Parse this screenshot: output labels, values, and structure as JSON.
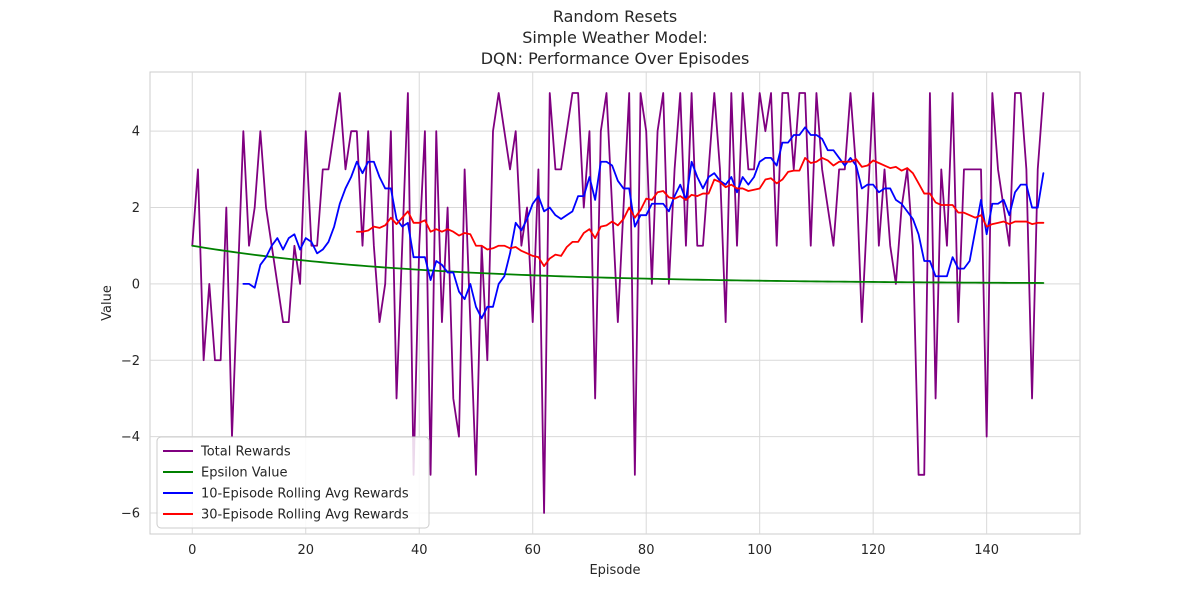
{
  "chart_data": {
    "type": "line",
    "title_lines": [
      "Random Resets",
      "Simple Weather Model:",
      "DQN: Performance Over Episodes"
    ],
    "xlabel": "Episode",
    "ylabel": "Value",
    "xlim": [
      -7.45,
      156.45
    ],
    "ylim": [
      -6.55,
      5.55
    ],
    "xticks": [
      0,
      20,
      40,
      60,
      80,
      100,
      120,
      140
    ],
    "yticks": [
      -6,
      -4,
      -2,
      0,
      2,
      4
    ],
    "ytick_labels": [
      "−6",
      "−4",
      "−2",
      "0",
      "2",
      "4"
    ],
    "grid": true,
    "legend_position": "lower-left",
    "series": [
      {
        "name": "Total Rewards",
        "color": "#800080",
        "x_start": 0,
        "values": [
          1,
          3,
          -2,
          0,
          -2,
          -2,
          2,
          -4,
          0,
          4,
          1,
          2,
          4,
          2,
          1,
          0,
          -1,
          -1,
          1,
          0,
          4,
          1,
          1,
          3,
          3,
          4,
          5,
          3,
          4,
          4,
          1,
          4,
          1,
          -1,
          0,
          4,
          -3,
          1,
          5,
          -5,
          1,
          4,
          -5,
          4,
          -1,
          2,
          -3,
          -4,
          3,
          -1,
          -5,
          1,
          -2,
          4,
          5,
          4,
          3,
          4,
          1,
          2,
          -1,
          3,
          -6,
          5,
          3,
          3,
          4,
          5,
          5,
          2,
          4,
          -3,
          4,
          5,
          2,
          -1,
          2,
          5,
          -5,
          5,
          4,
          0,
          4,
          5,
          0,
          3,
          5,
          1,
          5,
          1,
          1,
          3,
          5,
          3,
          -1,
          5,
          1,
          5,
          3,
          3,
          5,
          4,
          5,
          1,
          5,
          5,
          3,
          5,
          5,
          1,
          5,
          3,
          2,
          1,
          3,
          3,
          5,
          3,
          -1,
          2,
          5,
          1,
          3,
          1,
          0,
          2,
          3,
          1,
          -5,
          -5,
          5,
          -3,
          3,
          1,
          5,
          -1,
          3,
          3,
          3,
          3,
          -4,
          5,
          3,
          2,
          1,
          5,
          5,
          3,
          -3,
          3,
          5
        ]
      },
      {
        "name": "Epsilon Value",
        "color": "#008000",
        "x_start": 0,
        "decay_start": 1.0,
        "decay_rate": 0.9755
      },
      {
        "name": "10-Episode Rolling Avg Rewards",
        "color": "#0000ff",
        "x_start": 9
      },
      {
        "name": "30-Episode Rolling Avg Rewards",
        "color": "#ff0000",
        "x_start": 29
      }
    ]
  }
}
